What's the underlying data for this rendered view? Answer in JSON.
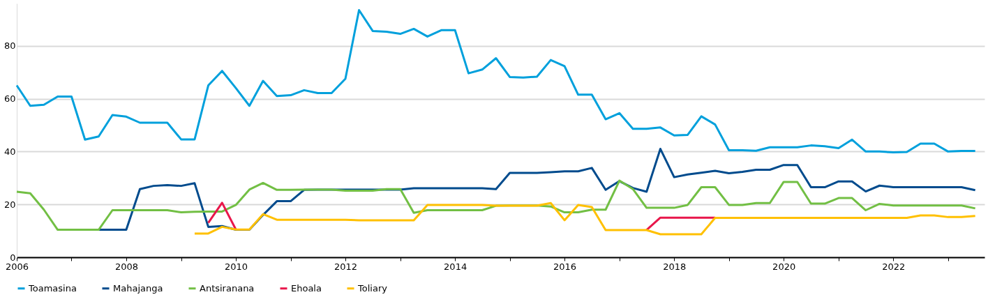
{
  "chart_data": {
    "type": "line",
    "x": [
      "2006-01",
      "2006-04",
      "2006-07",
      "2006-10",
      "2007-01",
      "2007-04",
      "2007-07",
      "2007-10",
      "2008-01",
      "2008-04",
      "2008-07",
      "2008-10",
      "2009-01",
      "2009-04",
      "2009-07",
      "2009-10",
      "2010-01",
      "2010-04",
      "2010-07",
      "2010-10",
      "2011-01",
      "2011-04",
      "2011-07",
      "2011-10",
      "2012-01",
      "2012-04",
      "2012-07",
      "2012-10",
      "2013-01",
      "2013-04",
      "2013-07",
      "2013-10",
      "2014-01",
      "2014-04",
      "2014-07",
      "2014-10",
      "2015-01",
      "2015-04",
      "2015-07",
      "2015-10",
      "2016-01",
      "2016-04",
      "2016-07",
      "2016-10",
      "2017-01",
      "2017-04",
      "2017-07",
      "2017-10",
      "2018-01",
      "2018-04",
      "2018-07",
      "2018-10",
      "2019-01",
      "2019-04",
      "2019-07",
      "2019-10",
      "2020-01",
      "2020-04",
      "2020-07",
      "2020-10",
      "2021-01",
      "2021-04",
      "2021-07",
      "2021-10",
      "2022-01",
      "2022-04",
      "2022-07",
      "2022-10",
      "2023-01",
      "2023-04",
      "2023-07"
    ],
    "series": [
      {
        "name": "Toamasina",
        "color": "#00a0dc",
        "values": [
          65,
          57.3,
          57.7,
          60.8,
          60.8,
          44.5,
          45.7,
          53.8,
          53.2,
          50.9,
          50.9,
          50.9,
          44.6,
          44.6,
          65,
          70.5,
          64,
          57.3,
          66.7,
          61,
          61.3,
          63.2,
          62.1,
          62.1,
          67.5,
          93.5,
          85.6,
          85.3,
          84.5,
          86.4,
          83.5,
          85.9,
          85.9,
          69.6,
          71,
          75.3,
          68.2,
          68,
          68.3,
          74.6,
          72.3,
          61.5,
          61.5,
          52.2,
          54.5,
          48.6,
          48.6,
          49.1,
          46.1,
          46.3,
          53.3,
          50.2,
          40.5,
          40.5,
          40.3,
          41.6,
          41.6,
          41.6,
          42.3,
          42,
          41.3,
          44.5,
          40,
          40,
          39.7,
          39.8,
          43,
          43,
          40,
          40.2,
          40.2
        ]
      },
      {
        "name": "Mahajanga",
        "color": "#004b8d",
        "values": [
          null,
          null,
          null,
          null,
          null,
          null,
          10.4,
          10.4,
          10.4,
          25.8,
          27,
          27.3,
          27,
          28,
          11.5,
          11.8,
          10.4,
          10.4,
          16,
          21.2,
          21.2,
          25.5,
          25.6,
          25.6,
          25.6,
          25.6,
          25.6,
          25.6,
          25.6,
          26.1,
          26.1,
          26.1,
          26.1,
          26.1,
          26.1,
          25.8,
          31.9,
          31.9,
          31.9,
          32.2,
          32.5,
          32.5,
          33.8,
          25.5,
          28.8,
          26.2,
          24.8,
          41,
          30.3,
          31.3,
          32,
          32.7,
          31.8,
          32.3,
          33.1,
          33.1,
          34.9,
          34.9,
          26.5,
          26.5,
          28.7,
          28.7,
          24.9,
          27.1,
          26.5,
          26.5,
          26.5,
          26.5,
          26.5,
          26.5,
          25.4
        ]
      },
      {
        "name": "Antsiranana",
        "color": "#72bf44",
        "values": [
          24.8,
          24.2,
          18,
          10.4,
          10.4,
          10.4,
          10.4,
          17.8,
          17.8,
          17.8,
          17.8,
          17.8,
          17,
          17.2,
          17.3,
          17.3,
          19.8,
          25.6,
          28.1,
          25.5,
          25.5,
          25.6,
          25.6,
          25.6,
          25.2,
          25.2,
          25.2,
          25.8,
          25.8,
          16.8,
          17.8,
          17.8,
          17.8,
          17.8,
          17.8,
          19.5,
          19.6,
          19.6,
          19.6,
          19.2,
          17,
          17,
          18,
          18,
          29,
          25.8,
          18.7,
          18.7,
          18.7,
          19.8,
          26.5,
          26.5,
          19.8,
          19.8,
          20.5,
          20.5,
          28.5,
          28.5,
          20.3,
          20.3,
          22.4,
          22.4,
          17.8,
          20.2,
          19.6,
          19.6,
          19.6,
          19.6,
          19.6,
          19.6,
          18.5
        ]
      },
      {
        "name": "Ehoala",
        "color": "#e8174b",
        "values": [
          null,
          null,
          null,
          null,
          null,
          null,
          null,
          null,
          null,
          null,
          null,
          null,
          null,
          null,
          13,
          20.6,
          10.5,
          null,
          null,
          null,
          null,
          null,
          null,
          null,
          null,
          null,
          null,
          null,
          null,
          null,
          null,
          null,
          null,
          null,
          null,
          null,
          null,
          null,
          null,
          null,
          null,
          null,
          null,
          null,
          null,
          null,
          10.3,
          15,
          15,
          15,
          15,
          15,
          null,
          null,
          null,
          null,
          null,
          null,
          null,
          null,
          null,
          null,
          null,
          null,
          null,
          null,
          null,
          null,
          null,
          null,
          null
        ]
      },
      {
        "name": "Toliary",
        "color": "#ffc000",
        "values": [
          null,
          null,
          null,
          null,
          null,
          null,
          null,
          null,
          null,
          null,
          null,
          null,
          null,
          9,
          9,
          11.5,
          10.5,
          10.5,
          16.3,
          14.2,
          14.2,
          14.2,
          14.2,
          14.2,
          14.2,
          14,
          14,
          14,
          14,
          14,
          19.8,
          19.8,
          19.8,
          19.8,
          19.8,
          19.5,
          19.5,
          19.5,
          19.5,
          20.5,
          14,
          19.8,
          19,
          10.3,
          10.3,
          10.3,
          10.3,
          8.7,
          8.7,
          8.7,
          8.7,
          14.9,
          14.9,
          14.9,
          14.9,
          14.9,
          14.9,
          14.9,
          14.9,
          14.9,
          14.9,
          14.9,
          14.9,
          14.9,
          14.9,
          14.9,
          15.8,
          15.8,
          15.2,
          15.2,
          15.6
        ]
      }
    ],
    "xlim": [
      "2006-01",
      "2023-09"
    ],
    "xticks": [
      "2006",
      {
        "value": "2007",
        "label": null
      },
      "2008",
      {
        "value": "2009",
        "label": null
      },
      "2010",
      {
        "value": "2011",
        "label": null
      },
      "2012",
      {
        "value": "2013",
        "label": null
      },
      "2014",
      {
        "value": "2015",
        "label": null
      },
      "2016",
      {
        "value": "2017",
        "label": null
      },
      "2018",
      {
        "value": "2019",
        "label": null
      },
      "2020",
      {
        "value": "2021",
        "label": null
      },
      "2022",
      {
        "value": "2023",
        "label": null
      }
    ],
    "ylim": [
      0,
      96
    ],
    "yticks": [
      0,
      20,
      40,
      60,
      80
    ],
    "grid": "y",
    "legend": "bottom",
    "marker": "none",
    "line_style": "solid"
  }
}
